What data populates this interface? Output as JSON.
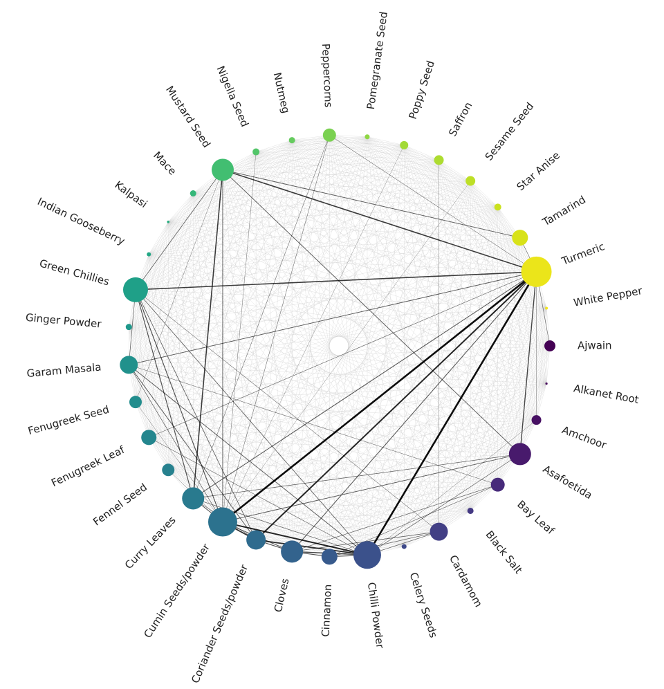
{
  "chart_data": {
    "type": "network",
    "layout": "circular",
    "node_color_scale": "viridis",
    "node_size_meaning": "weighted degree",
    "nodes": [
      {
        "name": "Ajwain",
        "size": 8,
        "color": "#440154"
      },
      {
        "name": "Alkanet Root",
        "size": 1.6,
        "color": "#46085c"
      },
      {
        "name": "Amchoor",
        "size": 7,
        "color": "#471063"
      },
      {
        "name": "Asafoetida",
        "size": 16,
        "color": "#481a6c"
      },
      {
        "name": "Bay Leaf",
        "size": 10,
        "color": "#472a7a"
      },
      {
        "name": "Black Salt",
        "size": 4.5,
        "color": "#443983"
      },
      {
        "name": "Cardamom",
        "size": 13,
        "color": "#423f85"
      },
      {
        "name": "Celery Seeds",
        "size": 3.5,
        "color": "#3e4989"
      },
      {
        "name": "Chilli Powder",
        "size": 20,
        "color": "#3b518b"
      },
      {
        "name": "Cinnamon",
        "size": 11.5,
        "color": "#375a8c"
      },
      {
        "name": "Cloves",
        "size": 16,
        "color": "#33638d"
      },
      {
        "name": "Coriander Seeds/powder",
        "size": 14,
        "color": "#2f6b8e"
      },
      {
        "name": "Cumin Seeds/powder",
        "size": 21,
        "color": "#2c728e"
      },
      {
        "name": "Curry Leaves",
        "size": 16,
        "color": "#297a8e"
      },
      {
        "name": "Fennel Seed",
        "size": 9,
        "color": "#27818e"
      },
      {
        "name": "Fenugreek Leaf",
        "size": 11,
        "color": "#24868e"
      },
      {
        "name": "Fenugreek Seed",
        "size": 9,
        "color": "#228d8d"
      },
      {
        "name": "Garam Masala",
        "size": 13,
        "color": "#21918c"
      },
      {
        "name": "Ginger Powder",
        "size": 4.5,
        "color": "#1f988b"
      },
      {
        "name": "Green Chillies",
        "size": 18,
        "color": "#1fa088"
      },
      {
        "name": "Indian Gooseberry",
        "size": 3,
        "color": "#22a785"
      },
      {
        "name": "Kalpasi",
        "size": 1.8,
        "color": "#28ae80"
      },
      {
        "name": "Mace",
        "size": 4.5,
        "color": "#35b779"
      },
      {
        "name": "Mustard Seed",
        "size": 16,
        "color": "#42be71"
      },
      {
        "name": "Nigella Seed",
        "size": 5,
        "color": "#52c569"
      },
      {
        "name": "Nutmeg",
        "size": 4.5,
        "color": "#65cb5e"
      },
      {
        "name": "Peppercorns",
        "size": 9.5,
        "color": "#7ad151"
      },
      {
        "name": "Pomegranate Seed",
        "size": 3.5,
        "color": "#8fd744"
      },
      {
        "name": "Poppy Seed",
        "size": 6,
        "color": "#a2da37"
      },
      {
        "name": "Saffron",
        "size": 7,
        "color": "#addc30"
      },
      {
        "name": "Sesame Seed",
        "size": 7,
        "color": "#bddf26"
      },
      {
        "name": "Star Anise",
        "size": 5,
        "color": "#cae11f"
      },
      {
        "name": "Tamarind",
        "size": 11.5,
        "color": "#d8e219"
      },
      {
        "name": "Turmeric",
        "size": 22,
        "color": "#ebe51a"
      },
      {
        "name": "White Pepper",
        "size": 2,
        "color": "#f2e51d"
      }
    ],
    "edges": [
      [
        "Cumin Seeds/powder",
        "Turmeric",
        2.6
      ],
      [
        "Chilli Powder",
        "Turmeric",
        2.6
      ],
      [
        "Cumin Seeds/powder",
        "Chilli Powder",
        2.0
      ],
      [
        "Coriander Seeds/powder",
        "Turmeric",
        2.0
      ],
      [
        "Chilli Powder",
        "Coriander Seeds/powder",
        1.8
      ],
      [
        "Cumin Seeds/powder",
        "Coriander Seeds/powder",
        1.8
      ],
      [
        "Green Chillies",
        "Turmeric",
        1.6
      ],
      [
        "Mustard Seed",
        "Turmeric",
        1.6
      ],
      [
        "Curry Leaves",
        "Mustard Seed",
        1.6
      ],
      [
        "Asafoetida",
        "Turmeric",
        1.4
      ],
      [
        "Cloves",
        "Chilli Powder",
        1.4
      ],
      [
        "Cinnamon",
        "Cloves",
        1.2
      ],
      [
        "Cinnamon",
        "Chilli Powder",
        1.2
      ],
      [
        "Curry Leaves",
        "Green Chillies",
        1.2
      ],
      [
        "Cumin Seeds/powder",
        "Green Chillies",
        1.2
      ],
      [
        "Coriander Seeds/powder",
        "Cloves",
        1.2
      ],
      [
        "Cumin Seeds/powder",
        "Cloves",
        1.1
      ],
      [
        "Cumin Seeds/powder",
        "Curry Leaves",
        1.1
      ],
      [
        "Curry Leaves",
        "Turmeric",
        1.1
      ],
      [
        "Cloves",
        "Turmeric",
        1.1
      ],
      [
        "Cumin Seeds/powder",
        "Mustard Seed",
        1.0
      ],
      [
        "Cumin Seeds/powder",
        "Asafoetida",
        1.0
      ],
      [
        "Mustard Seed",
        "Asafoetida",
        1.0
      ],
      [
        "Garam Masala",
        "Turmeric",
        1.0
      ],
      [
        "Tamarind",
        "Mustard Seed",
        1.0
      ],
      [
        "Chilli Powder",
        "Garam Masala",
        1.0
      ],
      [
        "Coriander Seeds/powder",
        "Garam Masala",
        1.0
      ],
      [
        "Green Chillies",
        "Chilli Powder",
        0.9
      ],
      [
        "Green Chillies",
        "Coriander Seeds/powder",
        0.9
      ],
      [
        "Green Chillies",
        "Mustard Seed",
        0.9
      ],
      [
        "Cardamom",
        "Cloves",
        0.9
      ],
      [
        "Cardamom",
        "Chilli Powder",
        0.8
      ],
      [
        "Cardamom",
        "Cinnamon",
        0.8
      ],
      [
        "Bay Leaf",
        "Cloves",
        0.8
      ],
      [
        "Bay Leaf",
        "Cinnamon",
        0.7
      ],
      [
        "Asafoetida",
        "Curry Leaves",
        0.8
      ],
      [
        "Asafoetida",
        "Chilli Powder",
        0.8
      ],
      [
        "Fenugreek Leaf",
        "Turmeric",
        0.7
      ],
      [
        "Fenugreek Leaf",
        "Chilli Powder",
        0.7
      ],
      [
        "Green Chillies",
        "Garam Masala",
        0.8
      ],
      [
        "Garam Masala",
        "Cumin Seeds/powder",
        0.8
      ],
      [
        "Ajwain",
        "Turmeric",
        0.7
      ],
      [
        "Tamarind",
        "Turmeric",
        0.7
      ],
      [
        "Peppercorns",
        "Turmeric",
        0.6
      ],
      [
        "Peppercorns",
        "Cumin Seeds/powder",
        0.6
      ],
      [
        "Peppercorns",
        "Curry Leaves",
        0.6
      ],
      [
        "Amchoor",
        "Turmeric",
        0.5
      ],
      [
        "Amchoor",
        "Chilli Powder",
        0.5
      ],
      [
        "Fennel Seed",
        "Cumin Seeds/powder",
        0.5
      ],
      [
        "Fenugreek Seed",
        "Cumin Seeds/powder",
        0.5
      ],
      [
        "Fenugreek Seed",
        "Mustard Seed",
        0.5
      ],
      [
        "Cardamom",
        "Green Chillies",
        0.6
      ],
      [
        "Bay Leaf",
        "Garam Masala",
        0.6
      ],
      [
        "Curry Leaves",
        "Chilli Powder",
        0.8
      ],
      [
        "Curry Leaves",
        "Coriander Seeds/powder",
        0.7
      ],
      [
        "Nigella Seed",
        "Cumin Seeds/powder",
        0.5
      ],
      [
        "Saffron",
        "Cardamom",
        0.5
      ],
      [
        "Sesame Seed",
        "Cumin Seeds/powder",
        0.4
      ],
      [
        "Poppy Seed",
        "Cumin Seeds/powder",
        0.4
      ]
    ]
  }
}
